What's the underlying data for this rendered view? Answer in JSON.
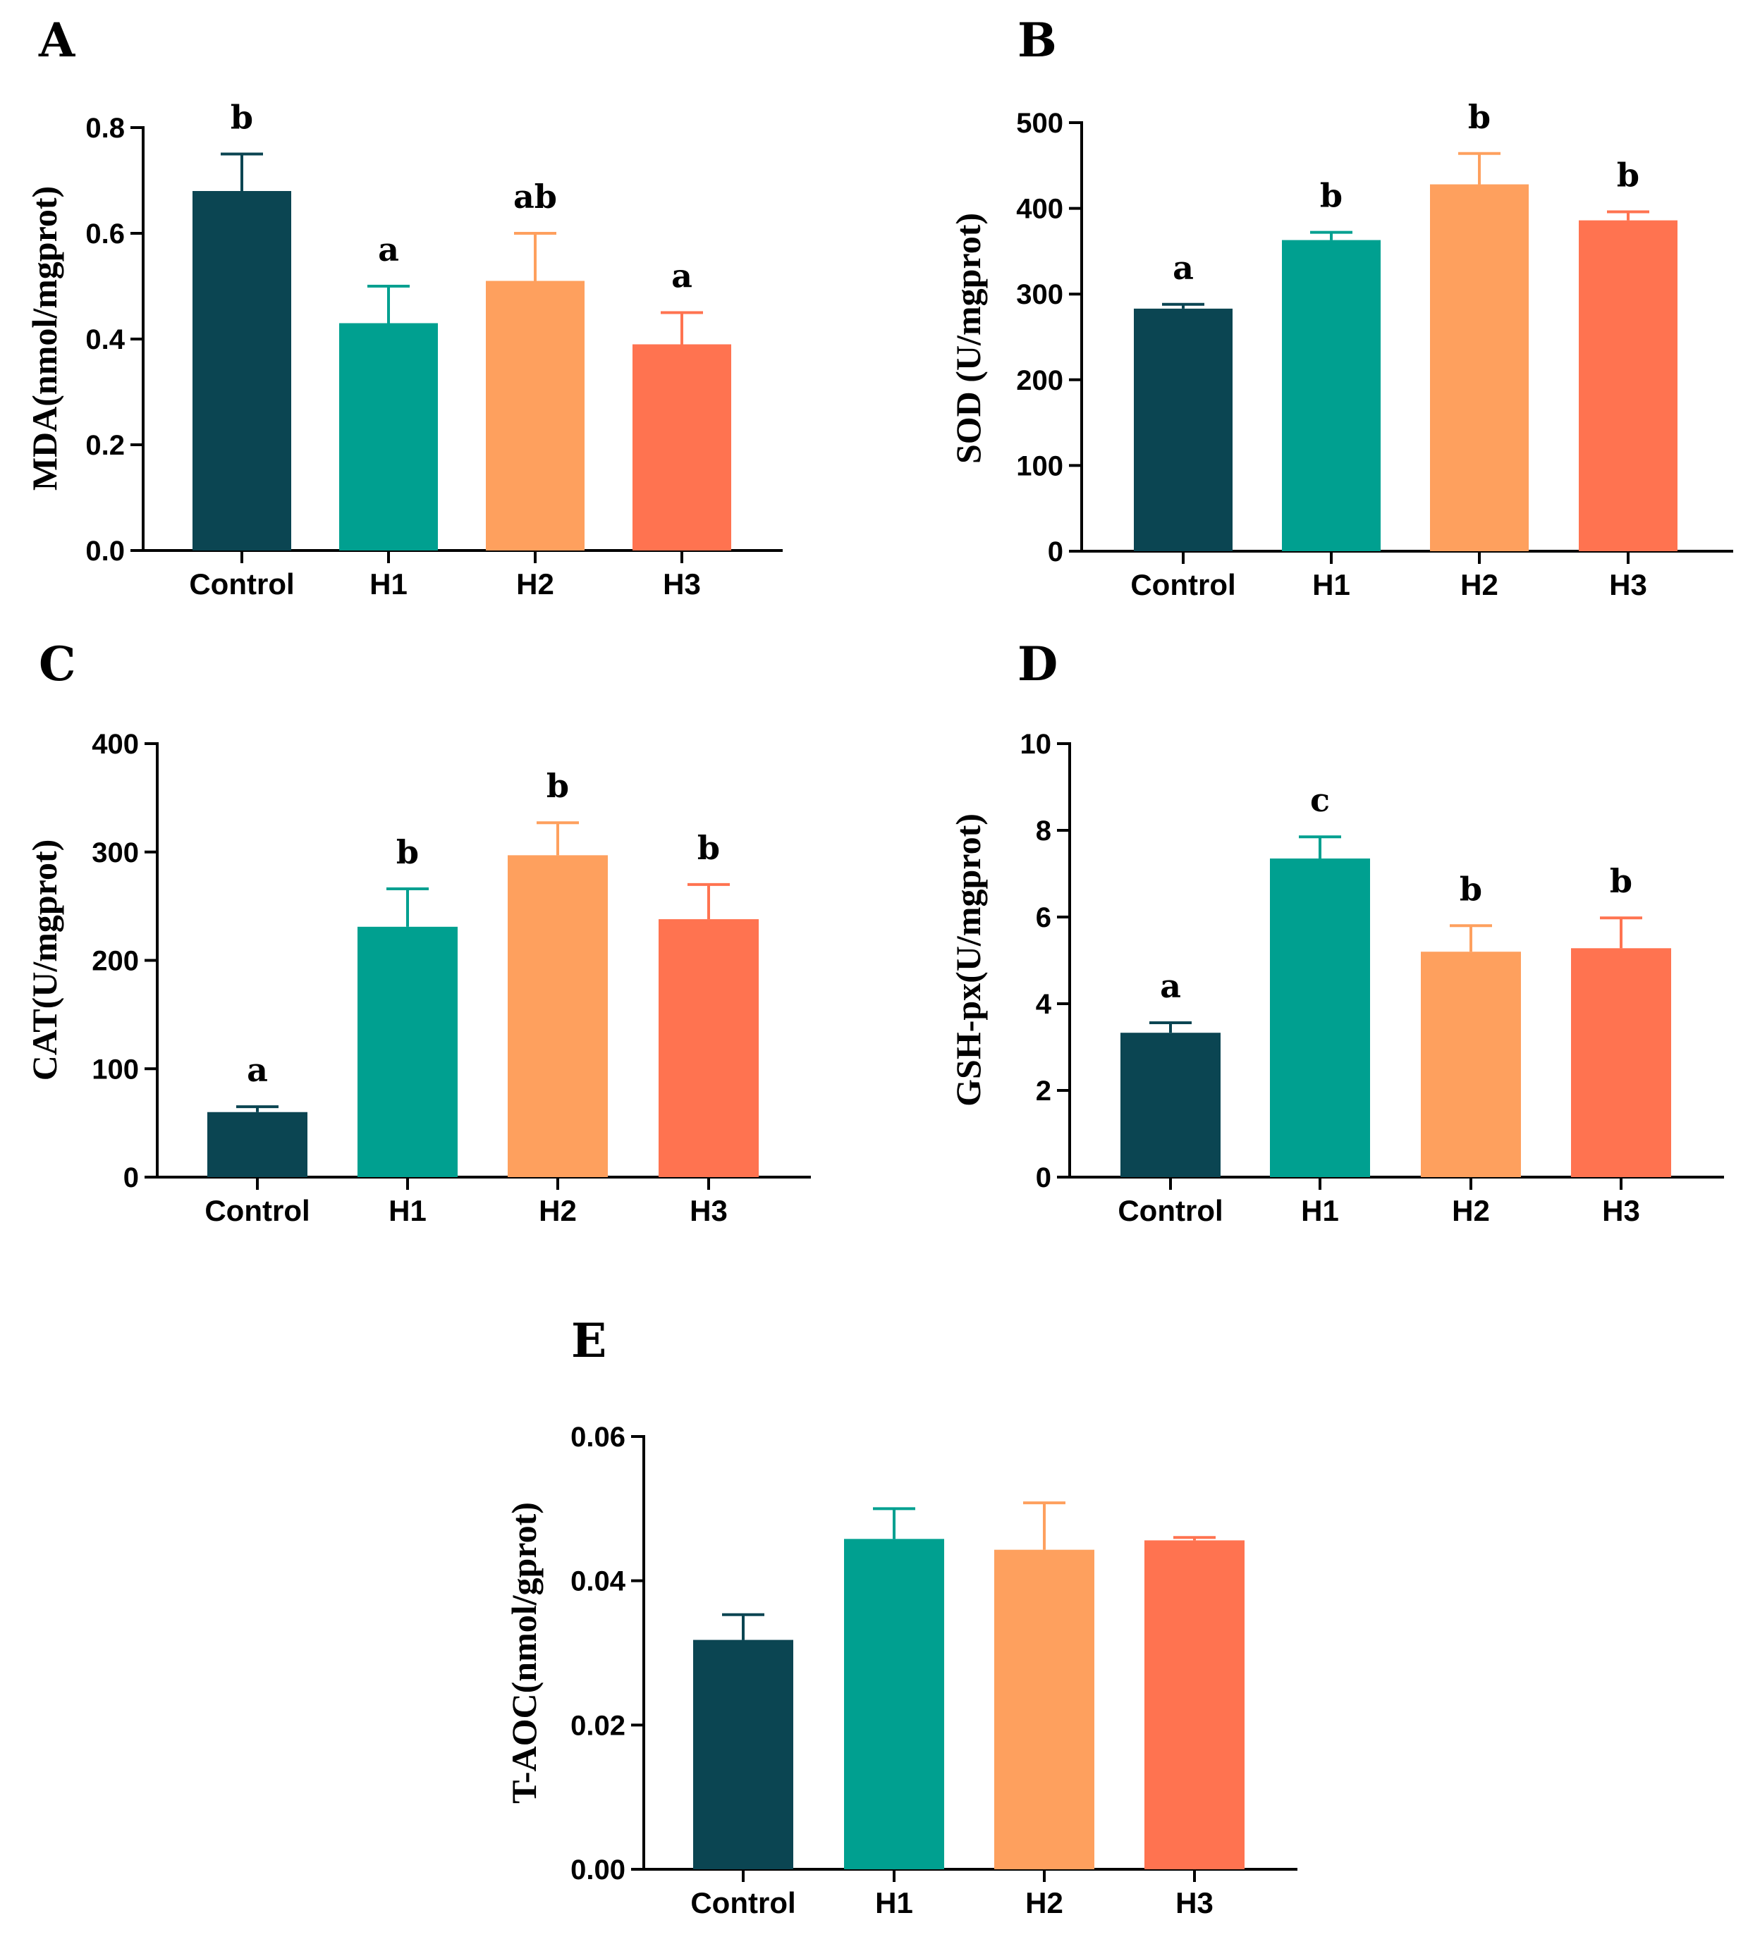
{
  "colors": {
    "Control": "#0b4552",
    "H1": "#00a090",
    "H2": "#fea05e",
    "H3": "#ff7350",
    "axis": "#000000"
  },
  "chart_data": [
    {
      "panel": "A",
      "type": "bar",
      "categories": [
        "Control",
        "H1",
        "H2",
        "H3"
      ],
      "values": [
        0.68,
        0.43,
        0.51,
        0.39
      ],
      "errors": [
        0.07,
        0.07,
        0.09,
        0.06
      ],
      "significance": [
        "b",
        "a",
        "ab",
        "a"
      ],
      "ylabel": "MDA(nmol/mgprot)",
      "ylim": [
        0,
        0.8
      ],
      "yticks": [
        "0.0",
        "0.2",
        "0.4",
        "0.6",
        "0.8"
      ]
    },
    {
      "panel": "B",
      "type": "bar",
      "categories": [
        "Control",
        "H1",
        "H2",
        "H3"
      ],
      "values": [
        283,
        363,
        428,
        386
      ],
      "errors": [
        5,
        9,
        36,
        10
      ],
      "significance": [
        "a",
        "b",
        "b",
        "b"
      ],
      "ylabel": "SOD (U/mgprot)",
      "ylim": [
        0,
        500
      ],
      "yticks": [
        "0",
        "100",
        "200",
        "300",
        "400",
        "500"
      ]
    },
    {
      "panel": "C",
      "type": "bar",
      "categories": [
        "Control",
        "H1",
        "H2",
        "H3"
      ],
      "values": [
        60,
        231,
        297,
        238
      ],
      "errors": [
        5,
        35,
        30,
        32
      ],
      "significance": [
        "a",
        "b",
        "b",
        "b"
      ],
      "ylabel": "CAT(U/mgprot)",
      "ylim": [
        0,
        400
      ],
      "yticks": [
        "0",
        "100",
        "200",
        "300",
        "400"
      ]
    },
    {
      "panel": "D",
      "type": "bar",
      "categories": [
        "Control",
        "H1",
        "H2",
        "H3"
      ],
      "values": [
        3.33,
        7.35,
        5.2,
        5.28
      ],
      "errors": [
        0.23,
        0.5,
        0.6,
        0.7
      ],
      "significance": [
        "a",
        "c",
        "b",
        "b"
      ],
      "ylabel": "GSH-px(U/mgprot)",
      "ylim": [
        0,
        10
      ],
      "yticks": [
        "0",
        "2",
        "4",
        "6",
        "8",
        "10"
      ]
    },
    {
      "panel": "E",
      "type": "bar",
      "categories": [
        "Control",
        "H1",
        "H2",
        "H3"
      ],
      "values": [
        0.0318,
        0.0458,
        0.0443,
        0.0456
      ],
      "errors": [
        0.0035,
        0.0042,
        0.0065,
        0.0004
      ],
      "significance": [
        "",
        "",
        "",
        ""
      ],
      "ylabel": "T-AOC(nmol/gprot)",
      "ylim": [
        0,
        0.06
      ],
      "yticks": [
        "0.00",
        "0.02",
        "0.04",
        "0.06"
      ]
    }
  ]
}
